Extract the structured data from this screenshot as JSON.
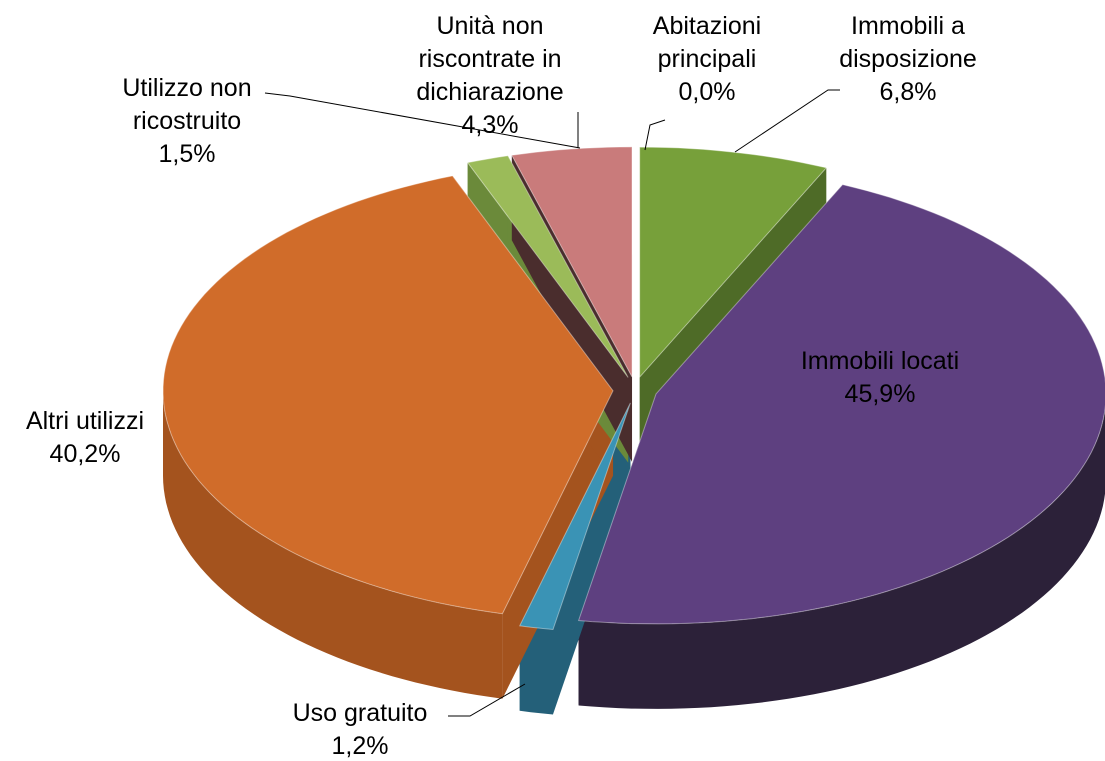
{
  "chart_data": {
    "type": "pie3d",
    "categories": [
      "Abitazioni principali",
      "Immobili a disposizione",
      "Immobili locati",
      "Uso gratuito",
      "Altri utilizzi",
      "Utilizzo non ricostruito",
      "Unità non riscontrate in dichiarazione"
    ],
    "values": [
      0.0,
      6.8,
      45.9,
      1.2,
      40.2,
      1.5,
      4.3
    ],
    "value_labels": [
      "0,0%",
      "6,8%",
      "45,9%",
      "1,2%",
      "40,2%",
      "1,5%",
      "4,3%"
    ],
    "colors": [
      "#4f81bd",
      "#77a03a",
      "#5e4080",
      "#3a93b5",
      "#d06c2a",
      "#9bbb59",
      "#c97b7b"
    ],
    "side_colors": [
      "#35598a",
      "#4e6b27",
      "#2c2139",
      "#246079",
      "#a4531e",
      "#6b8a3a",
      "#4a2d2d"
    ]
  }
}
